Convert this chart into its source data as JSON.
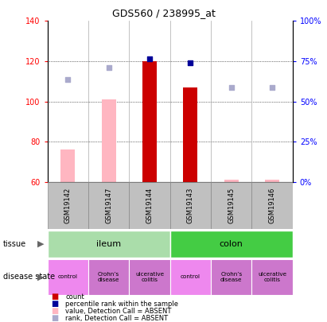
{
  "title": "GDS560 / 238995_at",
  "samples": [
    "GSM19142",
    "GSM19147",
    "GSM19144",
    "GSM19143",
    "GSM19145",
    "GSM19146"
  ],
  "ylim_left": [
    60,
    140
  ],
  "ylim_right": [
    0,
    100
  ],
  "left_ticks": [
    60,
    80,
    100,
    120,
    140
  ],
  "right_ticks": [
    0,
    25,
    50,
    75,
    100
  ],
  "right_tick_labels": [
    "0%",
    "25%",
    "50%",
    "75%",
    "100%"
  ],
  "bar_values_dark": [
    null,
    null,
    120,
    107,
    null,
    null
  ],
  "bar_values_light": [
    76,
    101,
    null,
    null,
    61,
    61
  ],
  "scatter_dark_blue": [
    null,
    null,
    121,
    119,
    null,
    null
  ],
  "scatter_light_blue": [
    111,
    117,
    null,
    null,
    107,
    107
  ],
  "bar_color_dark": "#CC0000",
  "bar_color_light": "#FFB6C1",
  "scatter_color_dark": "#000099",
  "scatter_color_light": "#AAAACC",
  "tissue_color_ileum": "#AADDAA",
  "tissue_color_colon": "#44CC44",
  "disease_colors_alt": [
    "#EE88EE",
    "#CC77CC",
    "#CC77CC",
    "#EE88EE",
    "#CC77CC",
    "#CC77CC"
  ],
  "disease_labels": [
    "control",
    "Crohn’s\ndisease",
    "ulcerative\ncolitis",
    "control",
    "Crohn’s\ndisease",
    "ulcerative\ncolitis"
  ],
  "grid_color": "black",
  "plot_bg": "#FFFFFF",
  "label_bg": "#C0C0C0",
  "legend_items": [
    {
      "color": "#CC0000",
      "label": "count"
    },
    {
      "color": "#000099",
      "label": "percentile rank within the sample"
    },
    {
      "color": "#FFB6C1",
      "label": "value, Detection Call = ABSENT"
    },
    {
      "color": "#AAAACC",
      "label": "rank, Detection Call = ABSENT"
    }
  ]
}
